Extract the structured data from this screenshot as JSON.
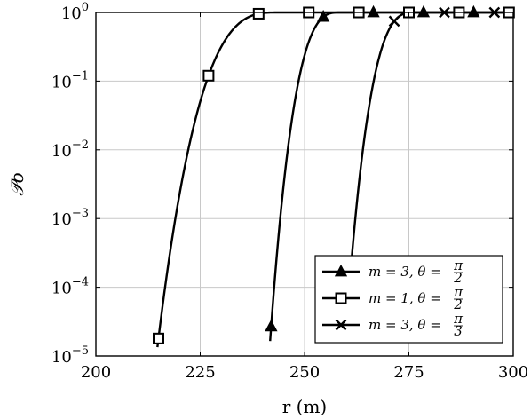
{
  "chart_data": {
    "type": "line",
    "xlabel": "r (m)",
    "ylabel": "𝒫o",
    "xlim": [
      200,
      300
    ],
    "ylim_log10": [
      -5,
      0
    ],
    "y_scale": "log",
    "grid": true,
    "legend_position": "bottom-right",
    "x_ticks": [
      200,
      225,
      250,
      275,
      300
    ],
    "x_tick_labels": [
      "200",
      "225",
      "250",
      "275",
      "300"
    ],
    "y_ticks_exp": [
      0,
      -1,
      -2,
      -3,
      -4,
      -5
    ],
    "y_tick_labels": [
      {
        "base": "10",
        "exp": "0"
      },
      {
        "base": "10",
        "exp": "−1"
      },
      {
        "base": "10",
        "exp": "−2"
      },
      {
        "base": "10",
        "exp": "−3"
      },
      {
        "base": "10",
        "exp": "−4"
      },
      {
        "base": "10",
        "exp": "−5"
      }
    ],
    "series": [
      {
        "name": "m = 3, θ = π/2",
        "legend": {
          "m": "3",
          "theta_num": "π",
          "theta_den": "2"
        },
        "marker": "triangle",
        "curve": {
          "start": 241.5,
          "k": 3.0,
          "sat": 258.5
        },
        "marker_x": [
          242,
          254.5,
          266.5,
          278.5,
          290.5
        ]
      },
      {
        "name": "m = 1, θ = π/2",
        "legend": {
          "m": "1",
          "theta_num": "π",
          "theta_den": "2"
        },
        "marker": "square",
        "curve": {
          "start": 214.5,
          "k": 3.0,
          "sat": 243.5
        },
        "marker_x": [
          215,
          227,
          239,
          251,
          263,
          275,
          287,
          299
        ]
      },
      {
        "name": "m = 3, θ = π/3",
        "legend": {
          "m": "3",
          "theta_num": "π",
          "theta_den": "3"
        },
        "marker": "x",
        "curve": {
          "start": 259.5,
          "k": 3.0,
          "sat": 276.5
        },
        "marker_x": [
          260,
          271.5,
          283.5,
          295.5
        ]
      }
    ]
  }
}
